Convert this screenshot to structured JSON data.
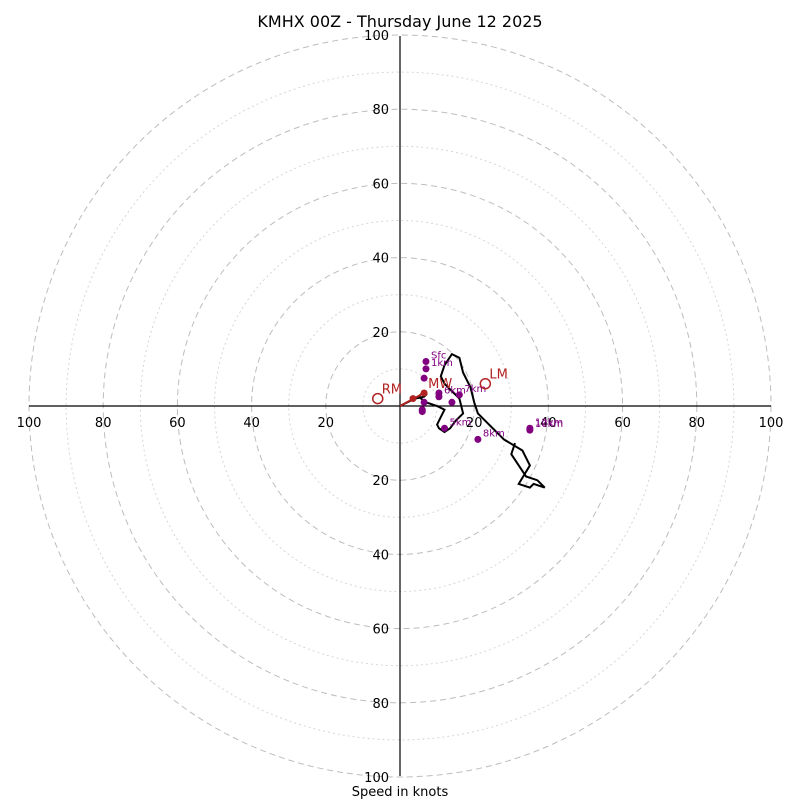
{
  "chart_data": {
    "type": "scatter",
    "title": "KMHX 00Z - Thursday June 12 2025",
    "xlabel": "Speed in knots",
    "xlim": [
      -100,
      100
    ],
    "ylim": [
      -100,
      100
    ],
    "major_rings": [
      20,
      40,
      60,
      80,
      100
    ],
    "minor_rings": [
      10,
      30,
      50,
      70,
      90
    ],
    "x_tick_labels": [
      "100",
      "80",
      "60",
      "40",
      "20",
      "20",
      "40",
      "60",
      "80",
      "100"
    ],
    "x_tick_values": [
      -100,
      -80,
      -60,
      -40,
      -20,
      20,
      40,
      60,
      80,
      100
    ],
    "y_tick_labels": [
      "100",
      "80",
      "60",
      "40",
      "20",
      "20",
      "40",
      "60",
      "80",
      "100"
    ],
    "y_tick_values": [
      100,
      80,
      60,
      40,
      20,
      -20,
      -40,
      -60,
      -80,
      -100
    ],
    "grid": true,
    "colors": {
      "trace": "#000000",
      "height_marker": "#800080",
      "motion": "#b22222",
      "axis": "#000000"
    },
    "hodograph_trace": {
      "name": "",
      "u": [
        0,
        1,
        2,
        4,
        6.5,
        7,
        6,
        5,
        7,
        10,
        12,
        11,
        10,
        10.5,
        12,
        13.5,
        15,
        17,
        16,
        14,
        12,
        11,
        12,
        14,
        16,
        17,
        19,
        20,
        21,
        24,
        26,
        27,
        28,
        33,
        35,
        32,
        35,
        36,
        39,
        37,
        34,
        30,
        31
      ],
      "v": [
        0,
        0.5,
        1,
        2,
        2.5,
        3,
        3.5,
        2.5,
        1,
        0,
        -1,
        -3,
        -5,
        -6,
        -7,
        -6,
        -4,
        -2,
        2,
        4,
        6,
        8,
        11,
        14,
        13,
        9,
        5,
        1,
        -2,
        -5,
        -7,
        -8,
        -9,
        -12,
        -16,
        -21,
        -22,
        -21,
        -22,
        -20,
        -19,
        -13,
        -10
      ]
    },
    "height_markers": [
      {
        "label": "Sfc",
        "u": 7,
        "v": 12
      },
      {
        "label": "1km",
        "u": 7,
        "v": 10
      },
      {
        "label": "",
        "u": 6.5,
        "v": 7.5
      },
      {
        "label": "",
        "u": 6.5,
        "v": 1
      },
      {
        "label": "",
        "u": 6,
        "v": -1
      },
      {
        "label": "",
        "u": 6,
        "v": -1.5
      },
      {
        "label": "6km",
        "u": 10.5,
        "v": 2.5
      },
      {
        "label": "",
        "u": 10.5,
        "v": 3.5
      },
      {
        "label": "",
        "u": 14,
        "v": 1
      },
      {
        "label": "7km",
        "u": 16,
        "v": 3
      },
      {
        "label": "5km",
        "u": 12,
        "v": -6
      },
      {
        "label": "8km",
        "u": 21,
        "v": -9
      },
      {
        "label": "12km",
        "u": 35,
        "v": -6
      },
      {
        "label": "10km",
        "u": 35,
        "v": -6.5
      }
    ],
    "storm_motion": [
      {
        "label": "RM",
        "u": -6,
        "v": 2,
        "style": "open-circle"
      },
      {
        "label": "LM",
        "u": 23,
        "v": 6,
        "style": "open-circle"
      },
      {
        "label": "MW",
        "u": 6.5,
        "v": 3.5,
        "style": "filled-point"
      },
      {
        "label": "",
        "u": 3.5,
        "v": 2,
        "style": "filled-point"
      }
    ],
    "shear_vector": {
      "label": "",
      "u_from": 0,
      "v_from": 0,
      "u_to": 6.5,
      "v_to": 3.5
    }
  }
}
